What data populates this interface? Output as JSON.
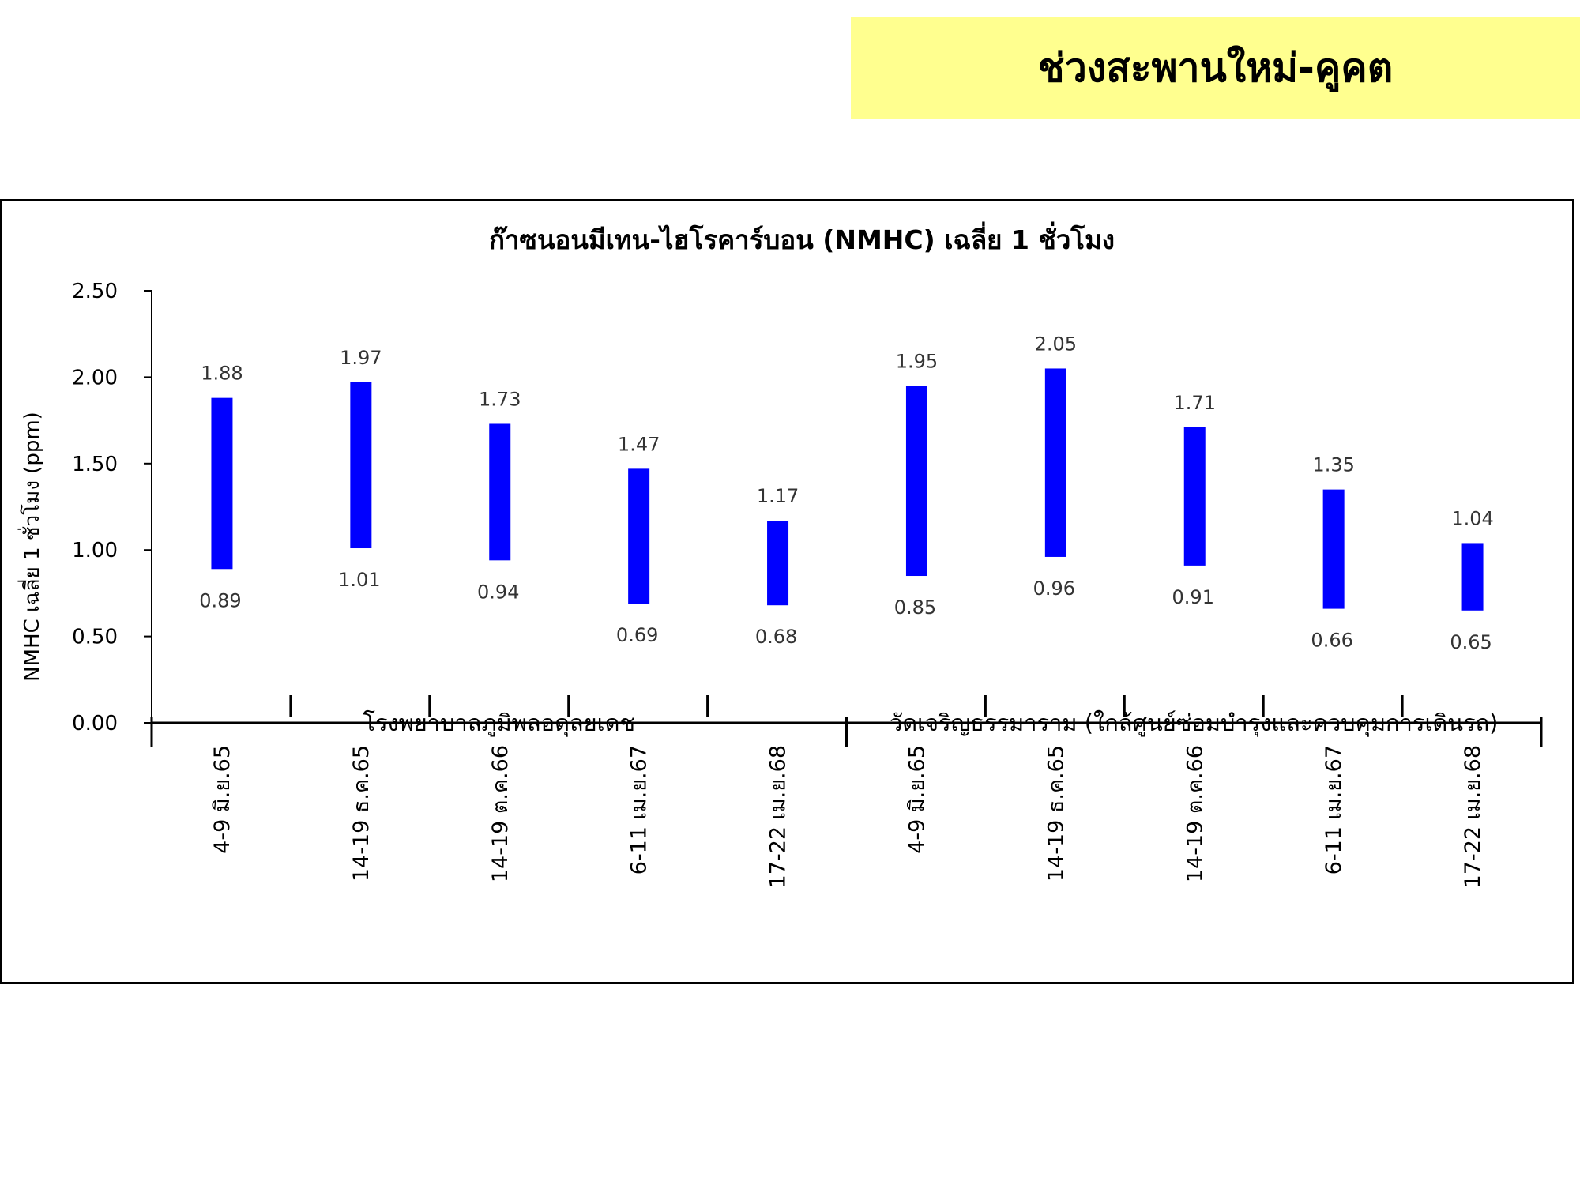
{
  "banner": {
    "text": "ช่วงสะพานใหม่-คูคต",
    "color": "#ffff8f"
  },
  "chart_data": {
    "type": "bar",
    "subtype": "floating-range",
    "title": "ก๊าซนอนมีเทน-ไฮโรคาร์บอน (NMHC) เฉลี่ย 1 ชั่วโมง",
    "ylabel": "NMHC เฉลี่ย 1 ชั่วโมง (ppm)",
    "xlabel": "",
    "ylim": [
      0,
      2.5
    ],
    "yticks": [
      0,
      0.5,
      1.0,
      1.5,
      2.0,
      2.5
    ],
    "ytick_labels": [
      "0.00",
      "0.50",
      "1.00",
      "1.50",
      "2.00",
      "2.50"
    ],
    "bar_color": "#0000ff",
    "grid": false,
    "legend": "none",
    "categories": [
      "4-9 มิ.ย.65",
      "14-19 ธ.ค.65",
      "14-19 ต.ค.66",
      "6-11 เม.ย.67",
      "17-22 เม.ย.68",
      "4-9 มิ.ย.65",
      "14-19 ธ.ค.65",
      "14-19 ต.ค.66",
      "6-11 เม.ย.67",
      "17-22 เม.ย.68"
    ],
    "groups": [
      {
        "label": "โรงพยาบาลภูมิพลอดุลยเดช",
        "count": 5
      },
      {
        "label": "วัดเจริญธรรมาราม (ใกล้ศูนย์ซ่อมบำรุงและควบคุมการเดินรถ)",
        "count": 5
      }
    ],
    "series": [
      {
        "values_min": [
          0.89,
          1.01,
          0.94,
          0.69,
          0.68,
          0.85,
          0.96,
          0.91,
          0.66,
          0.65
        ]
      },
      {
        "values_max": [
          1.88,
          1.97,
          1.73,
          1.47,
          1.17,
          1.95,
          2.05,
          1.71,
          1.35,
          1.04
        ]
      }
    ]
  }
}
